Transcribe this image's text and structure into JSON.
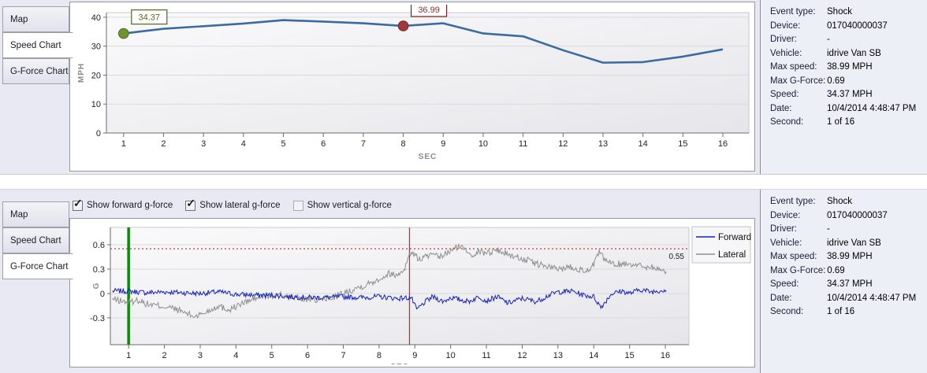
{
  "tabs": [
    {
      "label": "Map"
    },
    {
      "label": "Speed Chart"
    },
    {
      "label": "G-Force Chart"
    }
  ],
  "top_panel": {
    "active_tab": "Speed Chart"
  },
  "bottom_panel": {
    "active_tab": "G-Force Chart",
    "checkboxes": [
      {
        "label": "Show forward g-force",
        "checked": true
      },
      {
        "label": "Show lateral g-force",
        "checked": true
      },
      {
        "label": "Show vertical g-force",
        "checked": false
      }
    ]
  },
  "event_info": {
    "rows": [
      {
        "label": "Event type:",
        "value": "Shock"
      },
      {
        "label": "Device:",
        "value": "017040000037"
      },
      {
        "label": "Driver:",
        "value": "-"
      },
      {
        "label": "Vehicle:",
        "value": "idrive Van SB"
      },
      {
        "label": "Max speed:",
        "value": "38.99 MPH"
      },
      {
        "label": "Max G-Force:",
        "value": "0.69"
      },
      {
        "label": "Speed:",
        "value": "34.37 MPH"
      },
      {
        "label": "Date:",
        "value": "10/4/2014 4:48:47 PM"
      },
      {
        "label": "Second:",
        "value": "1 of 16"
      }
    ]
  },
  "colors": {
    "speed_line": "#3a6ba3",
    "forward_line": "#1420c8",
    "lateral_line": "#8f8f8f",
    "threshold_line": "#d23535",
    "marker_start": "#6e9330",
    "marker_event": "#a23737",
    "vline_start": "#0b8a0b",
    "vline_event": "#c23434",
    "grid": "#d9dade",
    "axis": "#6b6b70"
  },
  "chart_data": [
    {
      "id": "speed",
      "type": "line",
      "xlabel": "SEC",
      "ylabel": "MPH",
      "x": [
        1,
        2,
        3,
        4,
        5,
        6,
        7,
        8,
        9,
        10,
        11,
        12,
        13,
        14,
        15,
        16
      ],
      "values": [
        34.37,
        36.0,
        36.9,
        37.8,
        38.99,
        38.5,
        37.9,
        36.99,
        37.9,
        34.4,
        33.4,
        28.6,
        24.3,
        24.5,
        26.4,
        28.9
      ],
      "xlim": [
        0.57,
        16.65
      ],
      "ylim": [
        0,
        41.6
      ],
      "yticks": [
        0,
        10,
        20,
        30,
        40
      ],
      "xticks": [
        1,
        2,
        3,
        4,
        5,
        6,
        7,
        8,
        9,
        10,
        11,
        12,
        13,
        14,
        15,
        16
      ],
      "markers": [
        {
          "x": 1,
          "y": 34.37,
          "label": "34.37",
          "fill": "#6e9330",
          "stroke": "#4e6b1d",
          "text_color": "#55701a"
        },
        {
          "x": 8,
          "y": 36.99,
          "label": "36.99",
          "fill": "#a23737",
          "stroke": "#7c2222",
          "text_color": "#8d2e2e"
        }
      ]
    },
    {
      "id": "gforce",
      "type": "line",
      "xlabel": "SEC",
      "ylabel": "G",
      "xlim": [
        0.49,
        16.66
      ],
      "ylim": [
        -0.63,
        0.813
      ],
      "yticks": [
        -0.3,
        0,
        0.3,
        0.6
      ],
      "xticks": [
        1,
        2,
        3,
        4,
        5,
        6,
        7,
        8,
        9,
        10,
        11,
        12,
        13,
        14,
        15,
        16
      ],
      "threshold": {
        "y": 0.55,
        "label": "0.55",
        "color": "#d23535"
      },
      "vlines": [
        {
          "x": 1,
          "color": "#0b8a0b",
          "width": 3.5
        },
        {
          "x": 8.85,
          "color": "#c23434",
          "width": 1.3
        }
      ],
      "legend": {
        "position": "top-right",
        "entries": [
          "Forward",
          "Lateral"
        ]
      },
      "series": [
        {
          "name": "Forward",
          "color": "#1420c8",
          "noise": 0.032,
          "seed": 7,
          "keypoints": [
            [
              0.55,
              0.03
            ],
            [
              1,
              0.03
            ],
            [
              1.5,
              0.01
            ],
            [
              2,
              0.02
            ],
            [
              2.5,
              0.01
            ],
            [
              3,
              0.0
            ],
            [
              3.5,
              0.02
            ],
            [
              4,
              -0.01
            ],
            [
              4.5,
              -0.02
            ],
            [
              5,
              -0.02
            ],
            [
              5.5,
              -0.04
            ],
            [
              6,
              -0.05
            ],
            [
              6.5,
              -0.05
            ],
            [
              7,
              -0.04
            ],
            [
              7.5,
              -0.05
            ],
            [
              8,
              -0.04
            ],
            [
              8.5,
              -0.06
            ],
            [
              8.9,
              -0.05
            ],
            [
              9.05,
              -0.2
            ],
            [
              9.3,
              -0.1
            ],
            [
              9.5,
              -0.04
            ],
            [
              9.8,
              -0.1
            ],
            [
              10,
              -0.05
            ],
            [
              10.5,
              -0.1
            ],
            [
              10.8,
              -0.04
            ],
            [
              11,
              -0.09
            ],
            [
              11.3,
              -0.04
            ],
            [
              11.6,
              -0.12
            ],
            [
              12,
              -0.06
            ],
            [
              12.4,
              -0.1
            ],
            [
              12.7,
              -0.03
            ],
            [
              13,
              0.02
            ],
            [
              13.4,
              0.03
            ],
            [
              13.7,
              -0.02
            ],
            [
              14,
              -0.04
            ],
            [
              14.2,
              -0.17
            ],
            [
              14.5,
              0.0
            ],
            [
              14.8,
              0.03
            ],
            [
              15,
              0.0
            ],
            [
              15.3,
              0.05
            ],
            [
              15.6,
              0.02
            ],
            [
              16.05,
              0.05
            ]
          ]
        },
        {
          "name": "Lateral",
          "color": "#8f8f8f",
          "noise": 0.042,
          "seed": 13,
          "keypoints": [
            [
              0.55,
              -0.07
            ],
            [
              1,
              -0.11
            ],
            [
              1.3,
              -0.08
            ],
            [
              1.5,
              -0.13
            ],
            [
              2,
              -0.16
            ],
            [
              2.3,
              -0.19
            ],
            [
              2.6,
              -0.24
            ],
            [
              2.8,
              -0.28
            ],
            [
              3,
              -0.26
            ],
            [
              3.3,
              -0.2
            ],
            [
              3.5,
              -0.15
            ],
            [
              3.8,
              -0.2
            ],
            [
              4,
              -0.16
            ],
            [
              4.3,
              -0.1
            ],
            [
              4.6,
              -0.05
            ],
            [
              5,
              -0.03
            ],
            [
              5.3,
              -0.02
            ],
            [
              5.6,
              -0.05
            ],
            [
              6,
              -0.07
            ],
            [
              6.3,
              -0.08
            ],
            [
              6.6,
              -0.06
            ],
            [
              7,
              0.0
            ],
            [
              7.3,
              0.06
            ],
            [
              7.6,
              0.1
            ],
            [
              8,
              0.18
            ],
            [
              8.3,
              0.25
            ],
            [
              8.5,
              0.22
            ],
            [
              8.7,
              0.3
            ],
            [
              8.9,
              0.52
            ],
            [
              9.1,
              0.42
            ],
            [
              9.4,
              0.47
            ],
            [
              9.7,
              0.45
            ],
            [
              10,
              0.52
            ],
            [
              10.2,
              0.58
            ],
            [
              10.4,
              0.55
            ],
            [
              10.6,
              0.48
            ],
            [
              10.8,
              0.52
            ],
            [
              11,
              0.5
            ],
            [
              11.3,
              0.54
            ],
            [
              11.5,
              0.5
            ],
            [
              11.8,
              0.45
            ],
            [
              12,
              0.43
            ],
            [
              12.3,
              0.38
            ],
            [
              12.6,
              0.34
            ],
            [
              13,
              0.3
            ],
            [
              13.3,
              0.33
            ],
            [
              13.6,
              0.3
            ],
            [
              13.9,
              0.27
            ],
            [
              14.15,
              0.5
            ],
            [
              14.4,
              0.38
            ],
            [
              14.7,
              0.36
            ],
            [
              15,
              0.37
            ],
            [
              15.3,
              0.34
            ],
            [
              15.6,
              0.33
            ],
            [
              16.05,
              0.26
            ]
          ]
        }
      ]
    }
  ]
}
